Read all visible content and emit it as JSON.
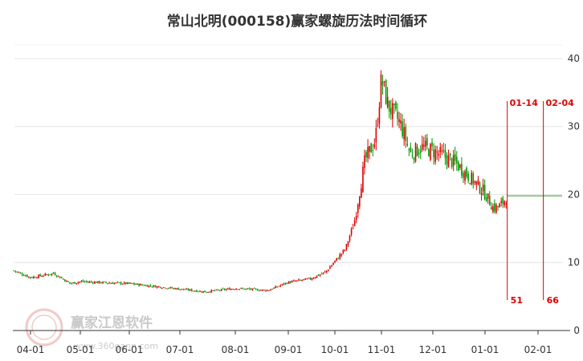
{
  "chart_data": {
    "type": "candlestick",
    "title": "常山北明(000158)赢家螺旋历法时间循环",
    "ylim": [
      0,
      42
    ],
    "y_ticks": [
      {
        "value": 0,
        "label": "0"
      },
      {
        "value": 10,
        "label": "10"
      },
      {
        "value": 20,
        "label": "20"
      },
      {
        "value": 30,
        "label": "30"
      },
      {
        "value": 40,
        "label": "40"
      }
    ],
    "x_ticks": [
      "04-01",
      "05-01",
      "06-01",
      "07-01",
      "08-01",
      "09-01",
      "10-01",
      "11-01",
      "12-01",
      "01-01",
      "02-01"
    ],
    "grid": true,
    "up_color": "#dd0000",
    "down_color": "#009900",
    "price_series": [
      {
        "date": "03-22",
        "close": 8.8
      },
      {
        "date": "04-01",
        "close": 7.8
      },
      {
        "date": "04-15",
        "close": 8.4
      },
      {
        "date": "04-25",
        "close": 6.9
      },
      {
        "date": "05-01",
        "close": 7.2
      },
      {
        "date": "06-01",
        "close": 6.9
      },
      {
        "date": "07-01",
        "close": 6.1
      },
      {
        "date": "07-15",
        "close": 5.7
      },
      {
        "date": "08-01",
        "close": 6.2
      },
      {
        "date": "08-20",
        "close": 5.9
      },
      {
        "date": "09-01",
        "close": 7.1
      },
      {
        "date": "09-15",
        "close": 7.6
      },
      {
        "date": "09-25",
        "close": 8.6
      },
      {
        "date": "10-08",
        "close": 12.0
      },
      {
        "date": "10-14",
        "close": 16.0
      },
      {
        "date": "10-21",
        "close": 25.0
      },
      {
        "date": "10-28",
        "close": 28.0
      },
      {
        "date": "11-01",
        "close": 37.0
      },
      {
        "date": "11-05",
        "close": 33.0
      },
      {
        "date": "11-12",
        "close": 30.5
      },
      {
        "date": "11-18",
        "close": 26.0
      },
      {
        "date": "11-25",
        "close": 27.0
      },
      {
        "date": "12-05",
        "close": 26.0
      },
      {
        "date": "12-15",
        "close": 24.5
      },
      {
        "date": "12-25",
        "close": 22.0
      },
      {
        "date": "12-31",
        "close": 20.5
      },
      {
        "date": "01-06",
        "close": 18.0
      },
      {
        "date": "01-10",
        "close": 18.3
      },
      {
        "date": "01-14",
        "close": 19.8
      }
    ],
    "last_price": 19.8,
    "cycle_markers": [
      {
        "date": "01-14",
        "label": "01-14",
        "count": "51"
      },
      {
        "date": "02-04",
        "label": "02-04",
        "count": "66"
      }
    ]
  },
  "watermark": {
    "logo_text": "赢家",
    "brand": "赢家江恩软件",
    "url": "www.360gann.com"
  }
}
